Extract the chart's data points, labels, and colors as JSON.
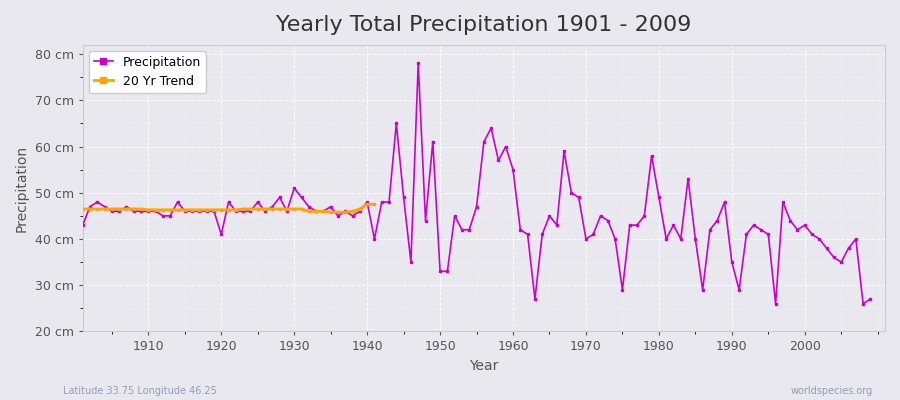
{
  "title": "Yearly Total Precipitation 1901 - 2009",
  "xlabel": "Year",
  "ylabel": "Precipitation",
  "bg_color": "#e8e8ee",
  "plot_bg_color": "#e8e8ee",
  "line_color": "#cc00cc",
  "trend_color": "#ffa500",
  "ylim": [
    20,
    82
  ],
  "yticks": [
    20,
    30,
    40,
    50,
    60,
    70,
    80
  ],
  "ytick_labels": [
    "20 cm",
    "30 cm",
    "40 cm",
    "50 cm",
    "60 cm",
    "70 cm",
    "80 cm"
  ],
  "years": [
    1901,
    1902,
    1903,
    1904,
    1905,
    1906,
    1907,
    1908,
    1909,
    1910,
    1911,
    1912,
    1913,
    1914,
    1915,
    1916,
    1917,
    1918,
    1919,
    1920,
    1921,
    1922,
    1923,
    1924,
    1925,
    1926,
    1927,
    1928,
    1929,
    1930,
    1931,
    1932,
    1933,
    1934,
    1935,
    1936,
    1937,
    1938,
    1939,
    1940,
    1941,
    1942,
    1943,
    1944,
    1945,
    1946,
    1947,
    1948,
    1949,
    1950,
    1951,
    1952,
    1953,
    1954,
    1955,
    1956,
    1957,
    1958,
    1959,
    1960,
    1961,
    1962,
    1963,
    1964,
    1965,
    1966,
    1967,
    1968,
    1969,
    1970,
    1971,
    1972,
    1973,
    1974,
    1975,
    1976,
    1977,
    1978,
    1979,
    1980,
    1981,
    1982,
    1983,
    1984,
    1985,
    1986,
    1987,
    1988,
    1989,
    1990,
    1991,
    1992,
    1993,
    1994,
    1995,
    1996,
    1997,
    1998,
    1999,
    2000,
    2001,
    2002,
    2003,
    2004,
    2005,
    2006,
    2007,
    2008,
    2009
  ],
  "precip": [
    43,
    47,
    48,
    47,
    46,
    46,
    47,
    46,
    46,
    46,
    46,
    45,
    45,
    48,
    46,
    46,
    46,
    46,
    46,
    41,
    48,
    46,
    46,
    46,
    48,
    46,
    47,
    49,
    46,
    51,
    49,
    47,
    46,
    46,
    47,
    45,
    46,
    45,
    46,
    48,
    40,
    48,
    48,
    65,
    49,
    35,
    78,
    44,
    61,
    33,
    33,
    45,
    42,
    42,
    47,
    61,
    64,
    57,
    60,
    55,
    42,
    41,
    27,
    41,
    45,
    43,
    59,
    50,
    49,
    40,
    41,
    45,
    44,
    40,
    29,
    43,
    43,
    45,
    58,
    49,
    40,
    43,
    40,
    53,
    40,
    29,
    42,
    44,
    48,
    35,
    29,
    41,
    43,
    42,
    41,
    26,
    48,
    44,
    42,
    43,
    41,
    40,
    38,
    36,
    35,
    38,
    40,
    26,
    27
  ],
  "trend_years": [
    1901,
    1902,
    1903,
    1904,
    1905,
    1906,
    1907,
    1908,
    1909,
    1910,
    1911,
    1912,
    1913,
    1914,
    1915,
    1916,
    1917,
    1918,
    1919,
    1920,
    1921,
    1922,
    1923,
    1924,
    1925,
    1926,
    1927,
    1928,
    1929,
    1930,
    1931,
    1932,
    1933,
    1934,
    1935,
    1936,
    1937,
    1938,
    1939,
    1940,
    1941
  ],
  "trend_values": [
    46.5,
    46.5,
    46.5,
    46.5,
    46.5,
    46.5,
    46.5,
    46.5,
    46.5,
    46.3,
    46.3,
    46.3,
    46.3,
    46.3,
    46.3,
    46.3,
    46.3,
    46.3,
    46.3,
    46.3,
    46.3,
    46.3,
    46.5,
    46.5,
    46.5,
    46.5,
    46.5,
    46.5,
    46.5,
    46.5,
    46.5,
    46.0,
    46.0,
    46.0,
    45.8,
    45.8,
    45.8,
    46.0,
    46.5,
    47.5,
    47.5
  ],
  "footer_left": "Latitude 33.75 Longitude 46.25",
  "footer_right": "worldspecies.org",
  "title_fontsize": 16,
  "axis_label_fontsize": 10,
  "tick_fontsize": 9,
  "legend_fontsize": 9
}
